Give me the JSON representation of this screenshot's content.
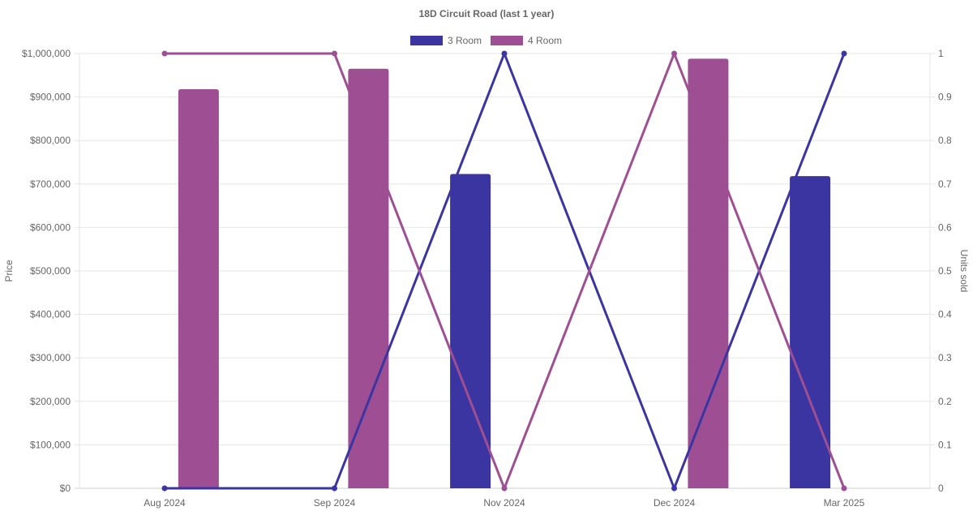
{
  "chart_data": {
    "type": "bar",
    "title": "18D Circuit Road (last 1 year)",
    "categories": [
      "Aug 2024",
      "Sep 2024",
      "Nov 2024",
      "Dec 2024",
      "Mar 2025"
    ],
    "legend": {
      "placement": "top-center"
    },
    "grid": true,
    "left_axis": {
      "label": "Price",
      "range": [
        0,
        1000000
      ],
      "ticks": [
        "$0",
        "$100,000",
        "$200,000",
        "$300,000",
        "$400,000",
        "$500,000",
        "$600,000",
        "$700,000",
        "$800,000",
        "$900,000",
        "$1,000,000"
      ]
    },
    "right_axis": {
      "label": "Units sold",
      "range": [
        0,
        1
      ],
      "ticks": [
        "0",
        "0.1",
        "0.2",
        "0.3",
        "0.4",
        "0.5",
        "0.6",
        "0.7",
        "0.8",
        "0.9",
        "1"
      ]
    },
    "series": [
      {
        "name": "3 Room",
        "color": "#3a35a0",
        "price": [
          null,
          null,
          723000,
          null,
          718000
        ],
        "units": [
          0,
          0,
          1,
          0,
          1
        ]
      },
      {
        "name": "4 Room",
        "color": "#9e4f94",
        "price": [
          918000,
          965000,
          null,
          988000,
          null
        ],
        "units": [
          1,
          1,
          0,
          1,
          0
        ]
      }
    ]
  }
}
